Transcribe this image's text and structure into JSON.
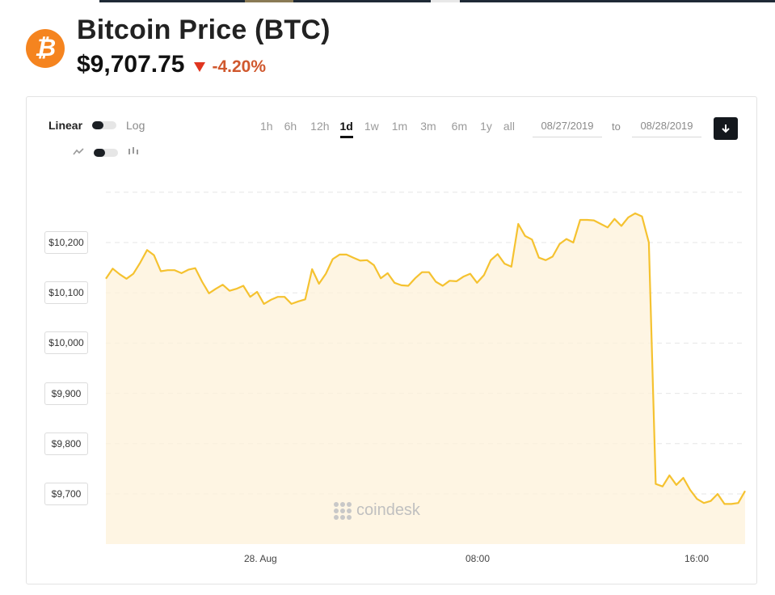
{
  "header": {
    "logo_glyph": "₿",
    "title": "Bitcoin Price (BTC)",
    "price": "$9,707.75",
    "change": "-4.20%"
  },
  "controls": {
    "scale_left": "Linear",
    "scale_right": "Log",
    "ranges": [
      "1h",
      "6h",
      "12h",
      "1d",
      "1w",
      "1m",
      "3m",
      "6m",
      "1y",
      "all"
    ],
    "active_range": "1d",
    "date_from": "08/27/2019",
    "date_to": "08/28/2019",
    "to_label": "to",
    "download_icon": "download-icon",
    "line_icon": "line-chart-icon",
    "candle_icon": "candlestick-icon"
  },
  "watermark": "coindesk",
  "colors": {
    "line": "#f5c230",
    "fill": "#fdf1da",
    "accent": "#f5841f",
    "down": "#e0351f"
  },
  "chart_data": {
    "type": "area",
    "title": "",
    "xlabel": "",
    "ylabel": "",
    "x_tick_labels": [
      "28. Aug",
      "08:00",
      "16:00"
    ],
    "y_tick_labels": [
      "$10,200",
      "$10,100",
      "$10,000",
      "$9,900",
      "$9,800",
      "$9,700"
    ],
    "ylim": [
      9640,
      10300
    ],
    "grid": true,
    "series": [
      {
        "values": [
          10128,
          10148,
          10137,
          10128,
          10138,
          10160,
          10185,
          10175,
          10143,
          10145,
          10145,
          10139,
          10146,
          10149,
          10122,
          10099,
          10108,
          10116,
          10104,
          10108,
          10114,
          10092,
          10102,
          10078,
          10086,
          10092,
          10092,
          10078,
          10083,
          10087,
          10147,
          10118,
          10138,
          10167,
          10176,
          10176,
          10170,
          10164,
          10165,
          10155,
          10129,
          10139,
          10120,
          10115,
          10114,
          10129,
          10141,
          10141,
          10122,
          10114,
          10124,
          10123,
          10132,
          10138,
          10120,
          10135,
          10165,
          10177,
          10158,
          10152,
          10237,
          10213,
          10206,
          10170,
          10165,
          10172,
          10197,
          10207,
          10200,
          10245,
          10245,
          10244,
          10237,
          10230,
          10247,
          10233,
          10250,
          10258,
          10252,
          10200,
          9720,
          9715,
          9737,
          9718,
          9732,
          9708,
          9690,
          9682,
          9686,
          9700,
          9680,
          9680,
          9682,
          9706
        ]
      }
    ]
  }
}
